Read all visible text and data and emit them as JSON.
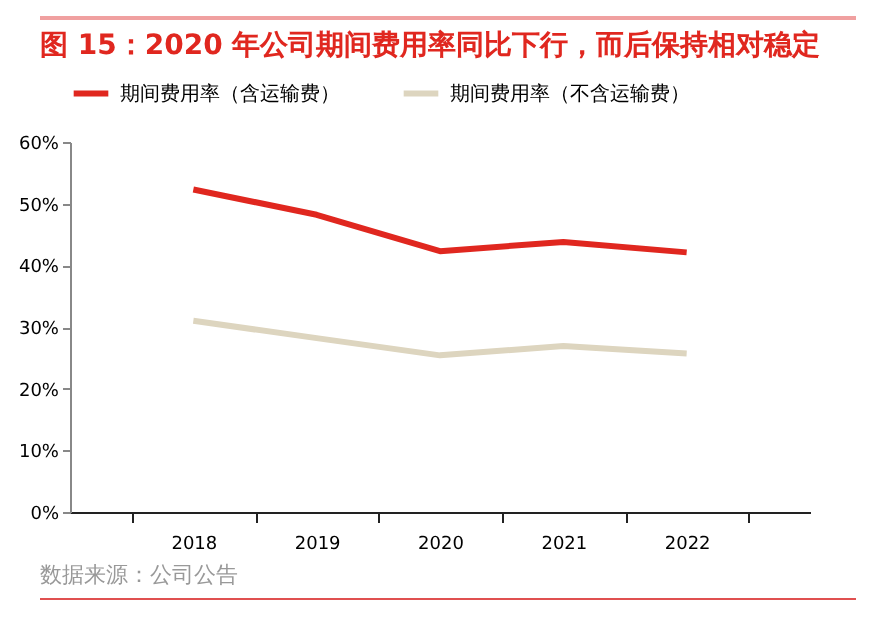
{
  "chart_data": {
    "type": "line",
    "title": "图 15：2020 年公司期间费用率同比下行，而后保持相对稳定",
    "categories": [
      "2018",
      "2019",
      "2020",
      "2021",
      "2022"
    ],
    "series": [
      {
        "name": "期间费用率（含运输费）",
        "color": "#e0271f",
        "values": [
          52.3,
          48.2,
          42.3,
          43.8,
          42.1
        ]
      },
      {
        "name": "期间费用率（不含运输费）",
        "color": "#ddd5bf",
        "values": [
          31.0,
          28.2,
          25.4,
          26.9,
          25.7
        ]
      }
    ],
    "ylim": [
      0,
      60
    ],
    "yticks": [
      {
        "value": 0,
        "label": "0%"
      },
      {
        "value": 10,
        "label": "10%"
      },
      {
        "value": 20,
        "label": "20%"
      },
      {
        "value": 30,
        "label": "30%"
      },
      {
        "value": 40,
        "label": "40%"
      },
      {
        "value": 50,
        "label": "50%"
      },
      {
        "value": 60,
        "label": "60%"
      }
    ],
    "grid": false,
    "legend": "top",
    "marker": "none",
    "line_style": "solid",
    "annotations": [
      "数据来源：公司公告"
    ]
  }
}
